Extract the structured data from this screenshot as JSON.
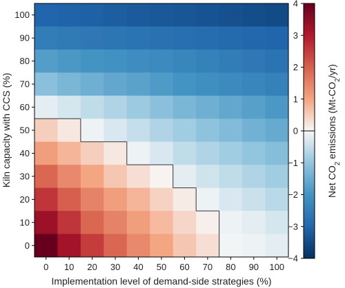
{
  "chart_data": {
    "type": "heatmap",
    "title": "",
    "xlabel": "Implementation level of demand-side strategies (%)",
    "ylabel": "Kiln capacity with CCS (%)",
    "x": [
      0,
      10,
      20,
      30,
      40,
      50,
      60,
      70,
      80,
      90,
      100
    ],
    "y": [
      100,
      90,
      80,
      70,
      60,
      50,
      40,
      30,
      20,
      10,
      0
    ],
    "values": [
      [
        -3.0,
        -3.05,
        -3.1,
        -3.15,
        -3.2,
        -3.25,
        -3.3,
        -3.35,
        -3.4,
        -3.45,
        -3.5
      ],
      [
        -2.5,
        -2.55,
        -2.6,
        -2.65,
        -2.7,
        -2.75,
        -2.8,
        -2.85,
        -2.9,
        -2.95,
        -3.0
      ],
      [
        -1.8,
        -1.9,
        -2.0,
        -2.05,
        -2.15,
        -2.2,
        -2.3,
        -2.4,
        -2.5,
        -2.6,
        -2.7
      ],
      [
        -1.1,
        -1.3,
        -1.45,
        -1.6,
        -1.7,
        -1.85,
        -2.0,
        -2.1,
        -2.2,
        -2.3,
        -2.4
      ],
      [
        -0.2,
        -0.35,
        -0.55,
        -0.7,
        -0.9,
        -1.1,
        -1.3,
        -1.45,
        -1.6,
        -1.75,
        -1.9
      ],
      [
        0.5,
        0.2,
        -0.1,
        -0.3,
        -0.5,
        -0.7,
        -0.85,
        -1.05,
        -1.2,
        -1.4,
        -1.55
      ],
      [
        1.1,
        0.8,
        0.5,
        0.2,
        -0.1,
        -0.3,
        -0.55,
        -0.7,
        -0.85,
        -1.0,
        -1.15
      ],
      [
        1.9,
        1.4,
        1.0,
        0.6,
        0.3,
        0.05,
        -0.2,
        -0.4,
        -0.55,
        -0.7,
        -0.85
      ],
      [
        2.6,
        2.0,
        1.5,
        1.1,
        0.8,
        0.45,
        0.15,
        -0.1,
        -0.3,
        -0.45,
        -0.6
      ],
      [
        3.3,
        2.6,
        1.9,
        1.5,
        1.1,
        0.75,
        0.4,
        0.1,
        -0.1,
        -0.2,
        -0.35
      ],
      [
        4.0,
        3.2,
        2.5,
        1.9,
        1.4,
        1.0,
        0.6,
        0.3,
        -0.05,
        -0.1,
        -0.2
      ]
    ],
    "colorbar": {
      "label": "Net CO2 emissions (Mt-CO2/yr)",
      "min": -4,
      "max": 4,
      "ticks": [
        "4",
        "3",
        "2",
        "1",
        "0",
        "−1",
        "−2",
        "−3",
        "−4"
      ]
    },
    "zero_contour": true,
    "colormap": {
      "negative": "#2166ac",
      "neutral": "#f7f7f7",
      "positive": "#67001f"
    }
  }
}
